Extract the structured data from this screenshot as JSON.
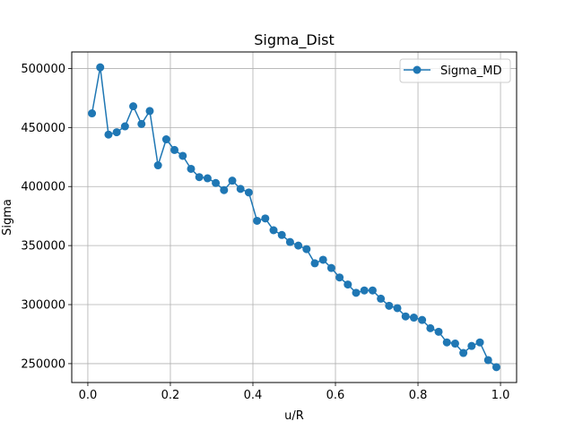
{
  "chart_data": {
    "type": "line",
    "title": "Sigma_Dist",
    "xlabel": "u/R",
    "ylabel": "Sigma",
    "xlim": [
      -0.039,
      1.039
    ],
    "ylim": [
      234000,
      514000
    ],
    "xticks": [
      0.0,
      0.2,
      0.4,
      0.6,
      0.8,
      1.0
    ],
    "xtick_labels": [
      "0.0",
      "0.2",
      "0.4",
      "0.6",
      "0.8",
      "1.0"
    ],
    "yticks": [
      250000,
      300000,
      350000,
      400000,
      450000,
      500000
    ],
    "ytick_labels": [
      "250000",
      "300000",
      "350000",
      "400000",
      "450000",
      "500000"
    ],
    "grid": true,
    "legend_position": "top-right",
    "series": [
      {
        "name": "Sigma_MD",
        "color": "#1f77b4",
        "marker": "circle",
        "x": [
          0.01,
          0.03,
          0.05,
          0.07,
          0.09,
          0.11,
          0.13,
          0.15,
          0.17,
          0.19,
          0.21,
          0.23,
          0.25,
          0.27,
          0.29,
          0.31,
          0.33,
          0.35,
          0.37,
          0.39,
          0.41,
          0.43,
          0.45,
          0.47,
          0.49,
          0.51,
          0.53,
          0.55,
          0.57,
          0.59,
          0.61,
          0.63,
          0.65,
          0.67,
          0.69,
          0.71,
          0.73,
          0.75,
          0.77,
          0.79,
          0.81,
          0.83,
          0.85,
          0.87,
          0.89,
          0.91,
          0.93,
          0.95,
          0.97,
          0.99
        ],
        "y": [
          462000,
          501000,
          444000,
          446000,
          451000,
          468000,
          453000,
          464000,
          418000,
          440000,
          431000,
          426000,
          415000,
          408000,
          407000,
          403000,
          397000,
          405000,
          398000,
          395000,
          371000,
          373000,
          363000,
          359000,
          353000,
          350000,
          347000,
          335000,
          338000,
          331000,
          323000,
          317000,
          310000,
          312000,
          312000,
          305000,
          299000,
          297000,
          290000,
          289000,
          287000,
          280000,
          277000,
          268000,
          267000,
          259000,
          265000,
          268000,
          253000,
          247000
        ]
      }
    ]
  }
}
